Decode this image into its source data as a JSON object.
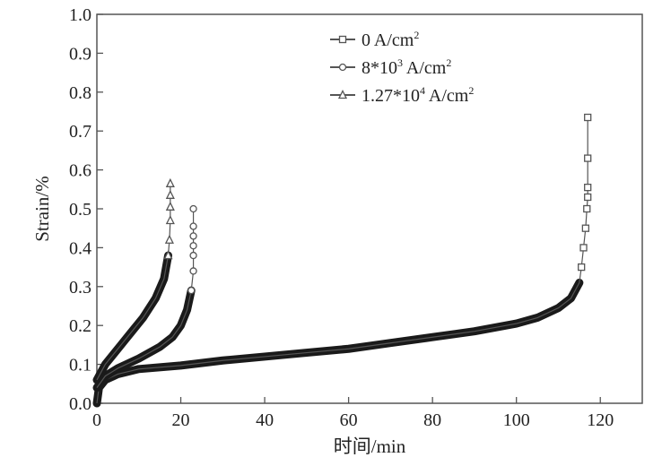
{
  "chart_data": {
    "type": "scatter",
    "title": "",
    "xlabel": "时间/min",
    "ylabel": "Strain/%",
    "xlim": [
      0,
      130
    ],
    "ylim": [
      0,
      1.0
    ],
    "xticks": [
      "0",
      "20",
      "40",
      "60",
      "80",
      "100",
      "120"
    ],
    "yticks": [
      "0.0",
      "0.1",
      "0.2",
      "0.3",
      "0.4",
      "0.5",
      "0.6",
      "0.7",
      "0.8",
      "0.9",
      "1.0"
    ],
    "grid": false,
    "legend_position": "top-right",
    "series": [
      {
        "name": "0 A/cm",
        "sup": "2",
        "marker": "square",
        "x": [
          0,
          0.5,
          2,
          5,
          10,
          20,
          30,
          40,
          50,
          60,
          70,
          80,
          90,
          100,
          105,
          110,
          113,
          115,
          115.5,
          116,
          116.5,
          116.8,
          117,
          117,
          117,
          117
        ],
        "y": [
          0,
          0.04,
          0.06,
          0.075,
          0.088,
          0.097,
          0.11,
          0.12,
          0.13,
          0.14,
          0.155,
          0.17,
          0.185,
          0.205,
          0.22,
          0.245,
          0.27,
          0.31,
          0.35,
          0.4,
          0.45,
          0.5,
          0.53,
          0.555,
          0.63,
          0.735
        ]
      },
      {
        "name": "8*10",
        "sup": "3",
        "suffix": " A/cm",
        "sup2": "2",
        "marker": "circle",
        "x": [
          0,
          2,
          5,
          10,
          15,
          18,
          20,
          21.5,
          22.5,
          23,
          23,
          23,
          23,
          23,
          23
        ],
        "y": [
          0.04,
          0.07,
          0.09,
          0.115,
          0.145,
          0.17,
          0.2,
          0.24,
          0.29,
          0.34,
          0.38,
          0.405,
          0.43,
          0.455,
          0.5
        ]
      },
      {
        "name": "1.27*10",
        "sup": "4",
        "suffix": " A/cm",
        "sup2": "2",
        "marker": "triangle",
        "x": [
          0,
          2,
          5,
          8,
          11,
          14,
          16,
          17,
          17.3,
          17.5,
          17.5,
          17.5,
          17.5
        ],
        "y": [
          0.06,
          0.1,
          0.14,
          0.18,
          0.22,
          0.27,
          0.32,
          0.38,
          0.42,
          0.47,
          0.505,
          0.535,
          0.565
        ]
      }
    ]
  }
}
